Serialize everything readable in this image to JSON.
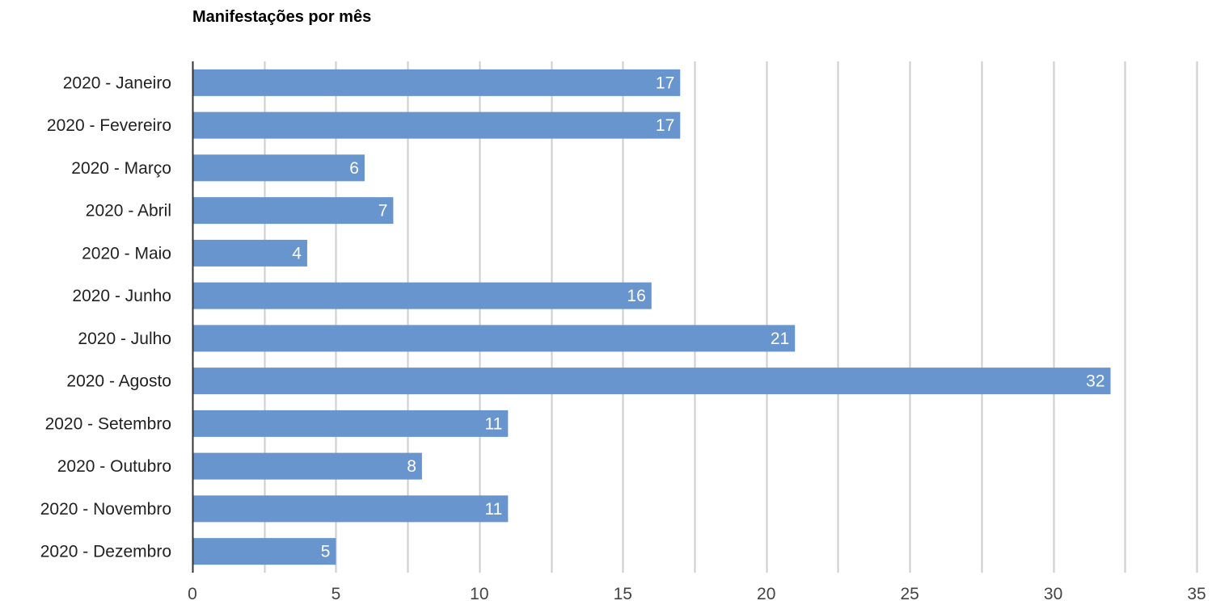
{
  "chart_data": {
    "type": "bar",
    "orientation": "horizontal",
    "title": "Manifestações por mês",
    "xlabel": "",
    "ylabel": "",
    "categories": [
      "2020 - Janeiro",
      "2020 - Fevereiro",
      "2020 - Março",
      "2020 - Abril",
      "2020 - Maio",
      "2020 - Junho",
      "2020 - Julho",
      "2020 - Agosto",
      "2020 - Setembro",
      "2020 - Outubro",
      "2020 - Novembro",
      "2020 - Dezembro"
    ],
    "values": [
      17,
      17,
      6,
      7,
      4,
      16,
      21,
      32,
      11,
      8,
      11,
      5
    ],
    "xlim": [
      0,
      35
    ],
    "x_ticks": [
      0,
      5,
      10,
      15,
      20,
      25,
      30,
      35
    ],
    "grid": true,
    "data_labels": true,
    "legend": "none",
    "colors": {
      "bar": "#6895CD",
      "grid": "#CCCCCC",
      "axis": "#333333",
      "data_label": "#FFFFFF"
    }
  }
}
